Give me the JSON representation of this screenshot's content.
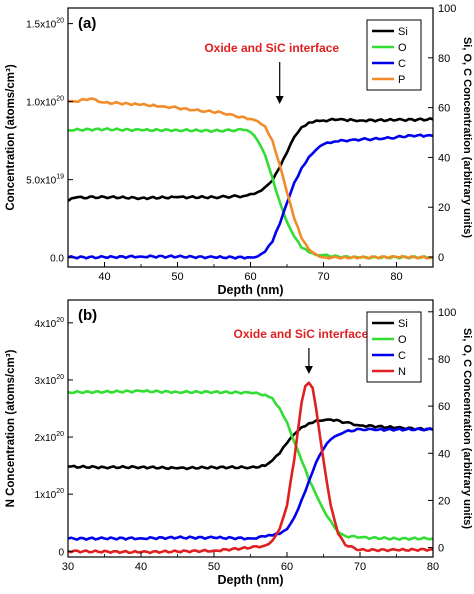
{
  "chart_data": [
    {
      "type": "line",
      "panel_label": "(a)",
      "annotation": "Oxide and SiC interface",
      "annotation_x": 64,
      "xlabel": "Depth (nm)",
      "ylabel": "Concentration (atoms/cm³)",
      "y2label": "Si, O, C Concentration (arbitrary units)",
      "xlim": [
        35,
        85
      ],
      "ylim": [
        -0.06,
        1.6
      ],
      "y2lim": [
        -4,
        100
      ],
      "xticks": [
        40,
        50,
        60,
        70,
        80
      ],
      "yticks": [
        {
          "value": 0,
          "mantissa": "0.0",
          "exp": ""
        },
        {
          "value": 0.5,
          "mantissa": "5.0x10",
          "exp": "19"
        },
        {
          "value": 1.0,
          "mantissa": "1.0x10",
          "exp": "20"
        },
        {
          "value": 1.5,
          "mantissa": "1.5x10",
          "exp": "20"
        }
      ],
      "y2ticks": [
        0,
        20,
        40,
        60,
        80,
        100
      ],
      "y_unit_note": "left axis values in units of 1e20 atoms/cm3",
      "legend": "top-right",
      "series": [
        {
          "name": "Si",
          "color": "#000000",
          "axis": "right",
          "x": [
            35,
            36,
            40,
            45,
            50,
            55,
            59,
            60,
            61,
            62,
            63,
            64,
            65,
            66,
            67,
            68,
            69,
            70,
            72,
            75,
            80,
            85
          ],
          "y": [
            22.5,
            23.5,
            24,
            24,
            24,
            24,
            24.5,
            25,
            26,
            28,
            31,
            36,
            42,
            48,
            52,
            54,
            55,
            55,
            55,
            55,
            55,
            55
          ]
        },
        {
          "name": "O",
          "color": "#33dd33",
          "axis": "right",
          "x": [
            35,
            40,
            45,
            50,
            55,
            59,
            60,
            61,
            62,
            63,
            64,
            65,
            66,
            67,
            68,
            69,
            70,
            72,
            75,
            80,
            85
          ],
          "y": [
            51,
            51,
            51,
            51,
            51,
            51,
            50,
            47,
            41,
            32,
            22,
            14,
            8,
            4,
            2,
            1,
            0.5,
            0,
            0,
            0,
            0
          ]
        },
        {
          "name": "C",
          "color": "#0000ee",
          "axis": "right",
          "x": [
            35,
            40,
            45,
            50,
            55,
            60,
            61,
            62,
            63,
            64,
            65,
            66,
            67,
            68,
            69,
            70,
            71,
            72,
            74,
            76,
            78,
            80,
            82,
            85
          ],
          "y": [
            0,
            0,
            0,
            0,
            0,
            0,
            0.5,
            2,
            6,
            13,
            22,
            30,
            36,
            40,
            43,
            45,
            46,
            46.5,
            47,
            47,
            47.5,
            48,
            48.5,
            49
          ]
        },
        {
          "name": "P",
          "color": "#f28c28",
          "axis": "left",
          "x": [
            35,
            36,
            38,
            40,
            42,
            45,
            48,
            50,
            52,
            54,
            56,
            58,
            60,
            61,
            62,
            63,
            64,
            65,
            66,
            67,
            68,
            69,
            70,
            72,
            75,
            80,
            85
          ],
          "y": [
            1.0,
            1.0,
            1.02,
            1.0,
            0.99,
            0.98,
            0.97,
            0.96,
            0.95,
            0.94,
            0.93,
            0.91,
            0.89,
            0.87,
            0.84,
            0.75,
            0.6,
            0.42,
            0.25,
            0.12,
            0.05,
            0.02,
            0.005,
            0,
            0,
            0,
            0
          ]
        }
      ]
    },
    {
      "type": "line",
      "panel_label": "(b)",
      "annotation": "Oxide and SiC interface",
      "annotation_x": 63,
      "xlabel": "Depth (nm)",
      "ylabel": "N Concentration (atoms/cm³)",
      "y2label": "Si, O, C Concentration (arbitrary units)",
      "xlim": [
        30,
        80
      ],
      "ylim": [
        -0.1,
        4.4
      ],
      "y2lim": [
        -4,
        105
      ],
      "xticks": [
        30,
        40,
        50,
        60,
        70,
        80
      ],
      "yticks": [
        {
          "value": 0,
          "mantissa": "0",
          "exp": ""
        },
        {
          "value": 1,
          "mantissa": "1x10",
          "exp": "20"
        },
        {
          "value": 2,
          "mantissa": "2x10",
          "exp": "20"
        },
        {
          "value": 3,
          "mantissa": "3x10",
          "exp": "20"
        },
        {
          "value": 4,
          "mantissa": "4x10",
          "exp": "20"
        }
      ],
      "y2ticks": [
        0,
        20,
        40,
        60,
        80,
        100
      ],
      "y_unit_note": "left axis values in units of 1e20 atoms/cm3",
      "legend": "top-right",
      "series": [
        {
          "name": "Si",
          "color": "#000000",
          "axis": "right",
          "x": [
            30,
            35,
            40,
            45,
            50,
            55,
            57,
            58,
            59,
            60,
            61,
            62,
            63,
            64,
            65,
            66,
            68,
            70,
            75,
            80
          ],
          "y": [
            34,
            34,
            34,
            34,
            34,
            34,
            35,
            37,
            40,
            44,
            48,
            51,
            53,
            54,
            54,
            54,
            53,
            52,
            51,
            50
          ]
        },
        {
          "name": "O",
          "color": "#33dd33",
          "axis": "right",
          "x": [
            30,
            35,
            40,
            45,
            50,
            55,
            57,
            58,
            59,
            60,
            61,
            62,
            63,
            64,
            65,
            66,
            67,
            68,
            70,
            75,
            80
          ],
          "y": [
            66,
            66,
            66,
            66,
            66,
            66,
            65,
            63,
            59,
            53,
            45,
            37,
            29,
            22,
            16,
            11,
            7,
            5,
            4,
            4,
            4
          ]
        },
        {
          "name": "C",
          "color": "#0000ee",
          "axis": "right",
          "x": [
            30,
            35,
            40,
            45,
            50,
            55,
            57,
            58,
            59,
            60,
            61,
            62,
            63,
            64,
            65,
            66,
            67,
            68,
            70,
            72,
            75,
            80
          ],
          "y": [
            4,
            4,
            4,
            4,
            4,
            4,
            4.5,
            5,
            6,
            8,
            13,
            20,
            28,
            36,
            42,
            46,
            48,
            49,
            50,
            50,
            50,
            50
          ]
        },
        {
          "name": "N",
          "color": "#e02020",
          "axis": "left",
          "x": [
            30,
            40,
            50,
            55,
            57,
            58,
            59,
            60,
            61,
            62,
            62.5,
            63,
            63.5,
            64,
            65,
            66,
            67,
            68,
            70,
            75,
            80
          ],
          "y": [
            0,
            0,
            0.01,
            0.05,
            0.1,
            0.2,
            0.4,
            0.8,
            1.6,
            2.6,
            2.9,
            2.95,
            2.85,
            2.5,
            1.6,
            0.8,
            0.3,
            0.1,
            0.03,
            0.02,
            0.02
          ]
        }
      ]
    }
  ]
}
